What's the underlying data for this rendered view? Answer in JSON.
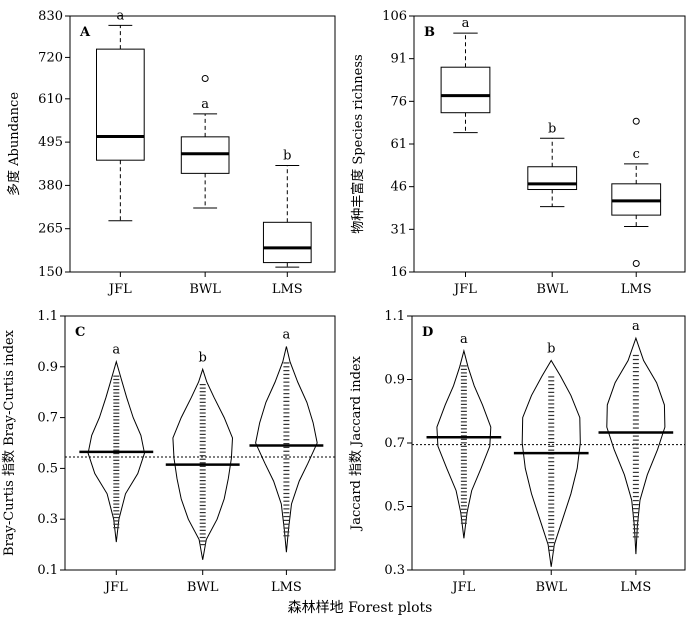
{
  "figure": {
    "xlabel": "森林样地 Forest plots"
  },
  "chart_data": [
    {
      "panel": "A",
      "type": "box",
      "ylabel": "多度 Abundance",
      "ylim": [
        150,
        830
      ],
      "yticks": [
        150,
        265,
        380,
        495,
        610,
        720,
        830
      ],
      "categories": [
        "JFL",
        "BWL",
        "LMS"
      ],
      "boxes": [
        {
          "min": 286,
          "q1": 447,
          "median": 510,
          "q3": 742,
          "max": 805,
          "outliers": [],
          "letter": "a"
        },
        {
          "min": 320,
          "q1": 412,
          "median": 464,
          "q3": 509,
          "max": 570,
          "outliers": [
            664
          ],
          "letter": "a"
        },
        {
          "min": 163,
          "q1": 175,
          "median": 214,
          "q3": 282,
          "max": 433,
          "outliers": [],
          "letter": "b"
        }
      ]
    },
    {
      "panel": "B",
      "type": "box",
      "ylabel": "物种丰富度 Species richness",
      "ylim": [
        16,
        106
      ],
      "yticks": [
        16,
        31,
        46,
        61,
        76,
        91,
        106
      ],
      "categories": [
        "JFL",
        "BWL",
        "LMS"
      ],
      "boxes": [
        {
          "min": 65,
          "q1": 72,
          "median": 78,
          "q3": 88,
          "max": 100,
          "outliers": [],
          "letter": "a"
        },
        {
          "min": 39,
          "q1": 45,
          "median": 47,
          "q3": 53,
          "max": 63,
          "outliers": [],
          "letter": "b"
        },
        {
          "min": 32,
          "q1": 36,
          "median": 41,
          "q3": 47,
          "max": 54,
          "outliers": [
            19,
            69
          ],
          "letter": "c"
        }
      ]
    },
    {
      "panel": "C",
      "type": "violin",
      "ylabel": "Bray-Curtis 指数 Bray-Curtis index",
      "ylim": [
        0.1,
        1.1
      ],
      "yticks": [
        0.1,
        0.3,
        0.5,
        0.7,
        0.9,
        1.1
      ],
      "categories": [
        "JFL",
        "BWL",
        "LMS"
      ],
      "overall_mean": 0.545,
      "groups": [
        {
          "mean": 0.565,
          "min": 0.21,
          "max": 0.92,
          "letter": "a",
          "profile": [
            [
              0.21,
              0.0
            ],
            [
              0.3,
              0.05
            ],
            [
              0.4,
              0.18
            ],
            [
              0.48,
              0.42
            ],
            [
              0.56,
              0.55
            ],
            [
              0.63,
              0.48
            ],
            [
              0.7,
              0.33
            ],
            [
              0.78,
              0.2
            ],
            [
              0.85,
              0.1
            ],
            [
              0.92,
              0.0
            ]
          ]
        },
        {
          "mean": 0.515,
          "min": 0.14,
          "max": 0.89,
          "letter": "b",
          "profile": [
            [
              0.14,
              0.0
            ],
            [
              0.22,
              0.07
            ],
            [
              0.3,
              0.28
            ],
            [
              0.38,
              0.42
            ],
            [
              0.46,
              0.5
            ],
            [
              0.54,
              0.56
            ],
            [
              0.62,
              0.58
            ],
            [
              0.7,
              0.42
            ],
            [
              0.78,
              0.22
            ],
            [
              0.84,
              0.08
            ],
            [
              0.89,
              0.0
            ]
          ]
        },
        {
          "mean": 0.59,
          "min": 0.17,
          "max": 0.98,
          "letter": "a",
          "profile": [
            [
              0.17,
              0.0
            ],
            [
              0.26,
              0.04
            ],
            [
              0.36,
              0.1
            ],
            [
              0.45,
              0.25
            ],
            [
              0.52,
              0.42
            ],
            [
              0.6,
              0.6
            ],
            [
              0.68,
              0.52
            ],
            [
              0.76,
              0.4
            ],
            [
              0.84,
              0.22
            ],
            [
              0.92,
              0.07
            ],
            [
              0.98,
              0.0
            ]
          ]
        }
      ]
    },
    {
      "panel": "D",
      "type": "violin",
      "ylabel": "Jaccard 指数 Jaccard index",
      "ylim": [
        0.3,
        1.1
      ],
      "yticks": [
        0.3,
        0.5,
        0.7,
        0.9,
        1.1
      ],
      "categories": [
        "JFL",
        "BWL",
        "LMS"
      ],
      "overall_mean": 0.695,
      "groups": [
        {
          "mean": 0.718,
          "min": 0.4,
          "max": 0.99,
          "letter": "a",
          "profile": [
            [
              0.4,
              0.0
            ],
            [
              0.48,
              0.06
            ],
            [
              0.55,
              0.15
            ],
            [
              0.62,
              0.33
            ],
            [
              0.69,
              0.5
            ],
            [
              0.75,
              0.52
            ],
            [
              0.82,
              0.36
            ],
            [
              0.88,
              0.2
            ],
            [
              0.94,
              0.08
            ],
            [
              0.99,
              0.0
            ]
          ]
        },
        {
          "mean": 0.668,
          "min": 0.31,
          "max": 0.96,
          "letter": "b",
          "profile": [
            [
              0.31,
              0.0
            ],
            [
              0.38,
              0.06
            ],
            [
              0.46,
              0.22
            ],
            [
              0.54,
              0.38
            ],
            [
              0.62,
              0.5
            ],
            [
              0.7,
              0.56
            ],
            [
              0.78,
              0.55
            ],
            [
              0.85,
              0.38
            ],
            [
              0.91,
              0.18
            ],
            [
              0.96,
              0.0
            ]
          ]
        },
        {
          "mean": 0.733,
          "min": 0.35,
          "max": 1.03,
          "letter": "a",
          "profile": [
            [
              0.35,
              0.0
            ],
            [
              0.44,
              0.03
            ],
            [
              0.52,
              0.08
            ],
            [
              0.6,
              0.22
            ],
            [
              0.68,
              0.42
            ],
            [
              0.75,
              0.56
            ],
            [
              0.82,
              0.55
            ],
            [
              0.89,
              0.4
            ],
            [
              0.96,
              0.15
            ],
            [
              1.03,
              0.0
            ]
          ]
        }
      ]
    }
  ]
}
